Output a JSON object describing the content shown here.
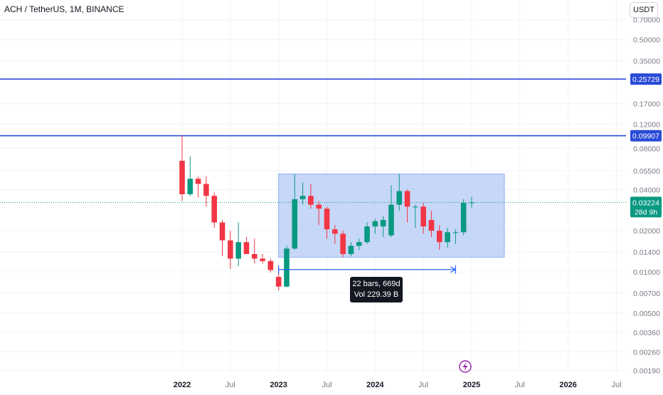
{
  "header": {
    "symbol_title": "ACH / TetherUS, 1M, BINANCE",
    "currency": "USDT"
  },
  "colors": {
    "up": "#089981",
    "down": "#f23645",
    "hline": "#2a4bd7",
    "range_fill": "#a9c2f5",
    "current_price": "#089981",
    "grid": "#f0f3fa",
    "axis_text": "#787b86"
  },
  "measure": {
    "bars_label": "22 bars, 669d",
    "vol_label": "Vol 229.39 B"
  },
  "price_labels": {
    "hline_1": "0.25729",
    "hline_2": "0.09907",
    "current_price": "0.03224",
    "countdown": "28d 9h"
  },
  "icons": {
    "event_marker": "lightning-icon"
  },
  "chart_data": {
    "type": "candlestick",
    "title": "ACH / TetherUS, 1M, BINANCE",
    "y_scale": "log",
    "ylim": [
      0.0017,
      0.85
    ],
    "xlim": [
      "2021-12-01",
      "2027-01-01"
    ],
    "y_ticks": [
      "0.70000",
      "0.50000",
      "0.35000",
      "0.25729",
      "0.17000",
      "0.12000",
      "0.09907",
      "0.08000",
      "0.05500",
      "0.04000",
      "0.03224",
      "0.02000",
      "0.01400",
      "0.01000",
      "0.00700",
      "0.00500",
      "0.00360",
      "0.00260",
      "0.00190"
    ],
    "x_ticks": [
      {
        "label": "2022",
        "date": "2022-01-01"
      },
      {
        "label": "Jul",
        "date": "2022-07-01"
      },
      {
        "label": "2023",
        "date": "2023-01-01"
      },
      {
        "label": "Jul",
        "date": "2023-07-01"
      },
      {
        "label": "2024",
        "date": "2024-01-01"
      },
      {
        "label": "Jul",
        "date": "2024-07-01"
      },
      {
        "label": "2025",
        "date": "2025-01-01"
      },
      {
        "label": "Jul",
        "date": "2025-07-01"
      },
      {
        "label": "2026",
        "date": "2026-01-01"
      },
      {
        "label": "Jul",
        "date": "2026-07-01"
      }
    ],
    "horizontal_lines": [
      0.25729,
      0.09907
    ],
    "current_price": 0.03224,
    "range_box": {
      "from": "2023-01-01",
      "to": "2024-11-01",
      "low": 0.0128,
      "high": 0.052
    },
    "measure_arrow": {
      "from": "2023-01-01",
      "to": "2024-11-01",
      "price": 0.0104
    },
    "candles": [
      {
        "date": "2022-01",
        "o": 0.065,
        "h": 0.1,
        "l": 0.033,
        "c": 0.037
      },
      {
        "date": "2022-02",
        "o": 0.037,
        "h": 0.07,
        "l": 0.036,
        "c": 0.048
      },
      {
        "date": "2022-03",
        "o": 0.048,
        "h": 0.05,
        "l": 0.035,
        "c": 0.044
      },
      {
        "date": "2022-04",
        "o": 0.044,
        "h": 0.05,
        "l": 0.03,
        "c": 0.036
      },
      {
        "date": "2022-05",
        "o": 0.036,
        "h": 0.038,
        "l": 0.021,
        "c": 0.023
      },
      {
        "date": "2022-06",
        "o": 0.023,
        "h": 0.024,
        "l": 0.013,
        "c": 0.017
      },
      {
        "date": "2022-07",
        "o": 0.017,
        "h": 0.02,
        "l": 0.0105,
        "c": 0.0125
      },
      {
        "date": "2022-08",
        "o": 0.0125,
        "h": 0.023,
        "l": 0.011,
        "c": 0.0165
      },
      {
        "date": "2022-09",
        "o": 0.0165,
        "h": 0.018,
        "l": 0.0135,
        "c": 0.0135
      },
      {
        "date": "2022-10",
        "o": 0.0135,
        "h": 0.0175,
        "l": 0.0115,
        "c": 0.0125
      },
      {
        "date": "2022-11",
        "o": 0.0125,
        "h": 0.0135,
        "l": 0.0115,
        "c": 0.012
      },
      {
        "date": "2022-12",
        "o": 0.012,
        "h": 0.0125,
        "l": 0.0099,
        "c": 0.0103
      },
      {
        "date": "2023-01",
        "o": 0.0092,
        "h": 0.0105,
        "l": 0.0073,
        "c": 0.0078
      },
      {
        "date": "2023-02",
        "o": 0.0078,
        "h": 0.0155,
        "l": 0.0077,
        "c": 0.0148
      },
      {
        "date": "2023-03",
        "o": 0.0148,
        "h": 0.052,
        "l": 0.0145,
        "c": 0.034
      },
      {
        "date": "2023-04",
        "o": 0.034,
        "h": 0.045,
        "l": 0.031,
        "c": 0.036
      },
      {
        "date": "2023-05",
        "o": 0.036,
        "h": 0.044,
        "l": 0.029,
        "c": 0.031
      },
      {
        "date": "2023-06",
        "o": 0.031,
        "h": 0.033,
        "l": 0.022,
        "c": 0.029
      },
      {
        "date": "2023-07",
        "o": 0.029,
        "h": 0.03,
        "l": 0.0175,
        "c": 0.0205
      },
      {
        "date": "2023-08",
        "o": 0.0205,
        "h": 0.022,
        "l": 0.016,
        "c": 0.019
      },
      {
        "date": "2023-09",
        "o": 0.019,
        "h": 0.02,
        "l": 0.0128,
        "c": 0.0135
      },
      {
        "date": "2023-10",
        "o": 0.0135,
        "h": 0.0165,
        "l": 0.013,
        "c": 0.0155
      },
      {
        "date": "2023-11",
        "o": 0.0155,
        "h": 0.0175,
        "l": 0.0145,
        "c": 0.0165
      },
      {
        "date": "2023-12",
        "o": 0.0165,
        "h": 0.023,
        "l": 0.016,
        "c": 0.0215
      },
      {
        "date": "2024-01",
        "o": 0.0215,
        "h": 0.0245,
        "l": 0.019,
        "c": 0.0235
      },
      {
        "date": "2024-02",
        "o": 0.0215,
        "h": 0.0255,
        "l": 0.018,
        "c": 0.024
      },
      {
        "date": "2024-03",
        "o": 0.0185,
        "h": 0.043,
        "l": 0.018,
        "c": 0.031
      },
      {
        "date": "2024-04",
        "o": 0.031,
        "h": 0.052,
        "l": 0.028,
        "c": 0.039
      },
      {
        "date": "2024-05",
        "o": 0.039,
        "h": 0.04,
        "l": 0.023,
        "c": 0.03
      },
      {
        "date": "2024-06",
        "o": 0.03,
        "h": 0.031,
        "l": 0.021,
        "c": 0.03
      },
      {
        "date": "2024-07",
        "o": 0.03,
        "h": 0.032,
        "l": 0.019,
        "c": 0.0215
      },
      {
        "date": "2024-08",
        "o": 0.024,
        "h": 0.028,
        "l": 0.018,
        "c": 0.02
      },
      {
        "date": "2024-09",
        "o": 0.02,
        "h": 0.022,
        "l": 0.0145,
        "c": 0.0165
      },
      {
        "date": "2024-10",
        "o": 0.0165,
        "h": 0.021,
        "l": 0.015,
        "c": 0.0195
      },
      {
        "date": "2024-11",
        "o": 0.0195,
        "h": 0.0205,
        "l": 0.016,
        "c": 0.0195
      },
      {
        "date": "2024-12",
        "o": 0.0195,
        "h": 0.034,
        "l": 0.0185,
        "c": 0.032
      },
      {
        "date": "2025-01",
        "o": 0.032,
        "h": 0.0355,
        "l": 0.0295,
        "c": 0.0322
      }
    ]
  }
}
